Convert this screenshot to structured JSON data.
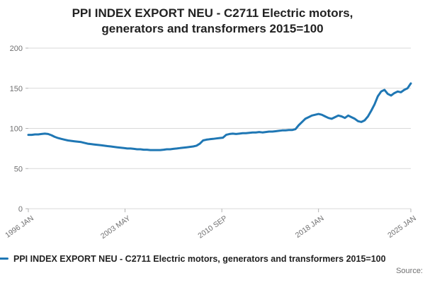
{
  "chart_data": {
    "type": "line",
    "title": "PPI INDEX EXPORT NEU - C2711 Electric motors, generators and transformers 2015=100",
    "legend": "PPI INDEX EXPORT NEU - C2711 Electric motors, generators and transformers 2015=100",
    "source_label": "Source:",
    "xlabel": "",
    "ylabel": "",
    "xlim": [
      1996.0,
      2025.0
    ],
    "ylim": [
      0,
      200
    ],
    "grid": true,
    "legend_position": "bottom",
    "y_ticks": [
      0,
      50,
      100,
      150,
      200
    ],
    "x_ticks": [
      {
        "label": "1996 JAN",
        "value": 1996.0
      },
      {
        "label": "2003 MAY",
        "value": 2003.33
      },
      {
        "label": "2010 SEP",
        "value": 2010.67
      },
      {
        "label": "2018 JAN",
        "value": 2018.0
      },
      {
        "label": "2025 JAN",
        "value": 2025.0
      }
    ],
    "colors": {
      "line": "#1f77b4",
      "grid": "#d9d9d9",
      "tick": "#b3b3b3",
      "axis_text": "#707071",
      "title_text": "#222222"
    },
    "series": [
      {
        "name": "PPI INDEX EXPORT NEU - C2711 Electric motors, generators and transformers 2015=100",
        "x_start": 1996.0,
        "x_step": 0.25,
        "values": [
          92,
          92,
          92.5,
          92.5,
          93,
          93.5,
          93,
          91.5,
          89.5,
          88,
          87,
          86,
          85,
          84.5,
          84,
          83.5,
          83,
          82,
          81,
          80.5,
          80,
          79.5,
          79,
          78.5,
          78,
          77.5,
          77,
          76.5,
          76,
          75.5,
          75,
          75,
          74.5,
          74,
          74,
          73.5,
          73.5,
          73,
          73,
          73,
          73,
          73.5,
          74,
          74,
          74.5,
          75,
          75.5,
          76,
          76.5,
          77,
          77.5,
          78.5,
          81,
          85,
          86,
          86.5,
          87,
          87.5,
          88,
          88.5,
          92,
          93,
          93.5,
          93,
          93.5,
          94,
          94,
          94.5,
          95,
          95,
          95.5,
          95,
          95.5,
          96,
          96,
          96.5,
          97,
          97.5,
          97.5,
          98,
          98,
          99,
          104,
          108,
          112,
          114,
          116,
          117,
          118,
          117,
          115,
          113,
          112,
          114,
          116,
          115,
          113,
          116,
          114,
          112,
          109,
          108,
          110,
          115,
          122,
          130,
          140,
          146,
          148,
          143,
          141,
          144,
          146,
          145,
          148,
          150,
          156
        ]
      }
    ]
  }
}
